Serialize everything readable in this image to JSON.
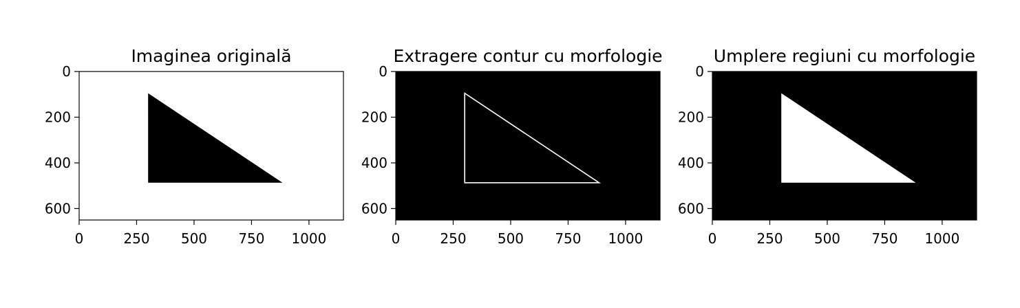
{
  "chart_data": [
    {
      "type": "image",
      "title": "Imaginea originală",
      "background": "#ffffff",
      "shape_fill": "#000000",
      "shape_stroke": "none",
      "triangle": [
        [
          300,
          95
        ],
        [
          300,
          487
        ],
        [
          885,
          487
        ]
      ],
      "xlim": [
        0,
        1150
      ],
      "ylim": [
        650,
        0
      ],
      "xticks": [
        0,
        250,
        500,
        750,
        1000
      ],
      "yticks": [
        0,
        200,
        400,
        600
      ]
    },
    {
      "type": "image",
      "title": "Extragere contur cu morfologie",
      "background": "#000000",
      "shape_fill": "none",
      "shape_stroke": "#ffffff",
      "triangle": [
        [
          300,
          95
        ],
        [
          300,
          487
        ],
        [
          885,
          487
        ]
      ],
      "xlim": [
        0,
        1150
      ],
      "ylim": [
        650,
        0
      ],
      "xticks": [
        0,
        250,
        500,
        750,
        1000
      ],
      "yticks": [
        0,
        200,
        400,
        600
      ]
    },
    {
      "type": "image",
      "title": "Umplere regiuni cu morfologie",
      "background": "#000000",
      "shape_fill": "#ffffff",
      "shape_stroke": "none",
      "triangle": [
        [
          300,
          95
        ],
        [
          300,
          487
        ],
        [
          885,
          487
        ]
      ],
      "xlim": [
        0,
        1150
      ],
      "ylim": [
        650,
        0
      ],
      "xticks": [
        0,
        250,
        500,
        750,
        1000
      ],
      "yticks": [
        0,
        200,
        400,
        600
      ]
    }
  ]
}
